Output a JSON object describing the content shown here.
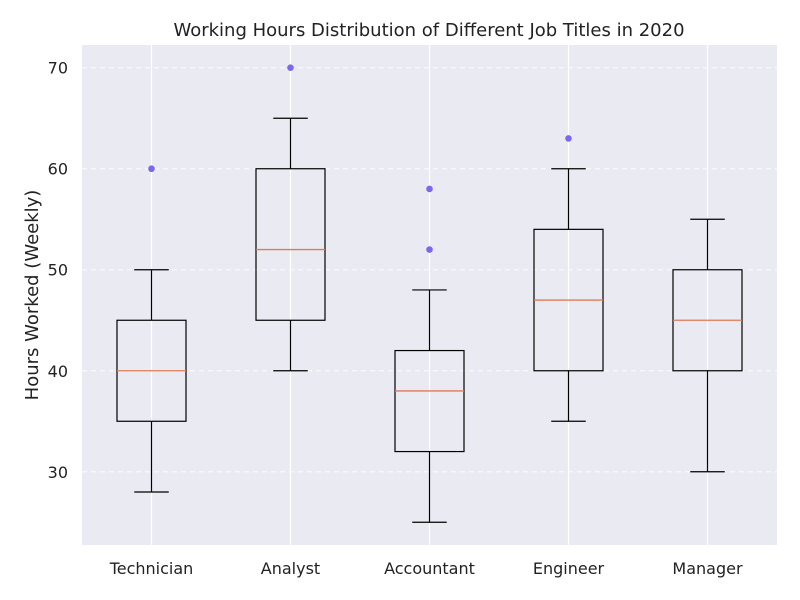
{
  "chart_data": {
    "type": "box",
    "title": "Working Hours Distribution of Different Job Titles in 2020",
    "xlabel": "",
    "ylabel": "Hours Worked (Weekly)",
    "ylim": [
      22.75,
      72.25
    ],
    "yticks": [
      30,
      40,
      50,
      60,
      70
    ],
    "grid": true,
    "categories": [
      "Technician",
      "Analyst",
      "Accountant",
      "Engineer",
      "Manager"
    ],
    "boxes": [
      {
        "category": "Technician",
        "whisker_low": 28,
        "q1": 35,
        "median": 40,
        "q3": 45,
        "whisker_high": 50,
        "outliers": [
          60
        ]
      },
      {
        "category": "Analyst",
        "whisker_low": 40,
        "q1": 45,
        "median": 52,
        "q3": 60,
        "whisker_high": 65,
        "outliers": [
          70
        ]
      },
      {
        "category": "Accountant",
        "whisker_low": 25,
        "q1": 32,
        "median": 38,
        "q3": 42,
        "whisker_high": 48,
        "outliers": [
          52,
          58
        ]
      },
      {
        "category": "Engineer",
        "whisker_low": 35,
        "q1": 40,
        "median": 47,
        "q3": 54,
        "whisker_high": 60,
        "outliers": [
          63
        ]
      },
      {
        "category": "Manager",
        "whisker_low": 30,
        "q1": 40,
        "median": 45,
        "q3": 50,
        "whisker_high": 55,
        "outliers": []
      }
    ],
    "colors": {
      "plot_background": "#eaeaf2",
      "grid": "#ffffff",
      "box": "#000000",
      "median": "#e07b54",
      "outlier": "#7b68ee"
    }
  }
}
